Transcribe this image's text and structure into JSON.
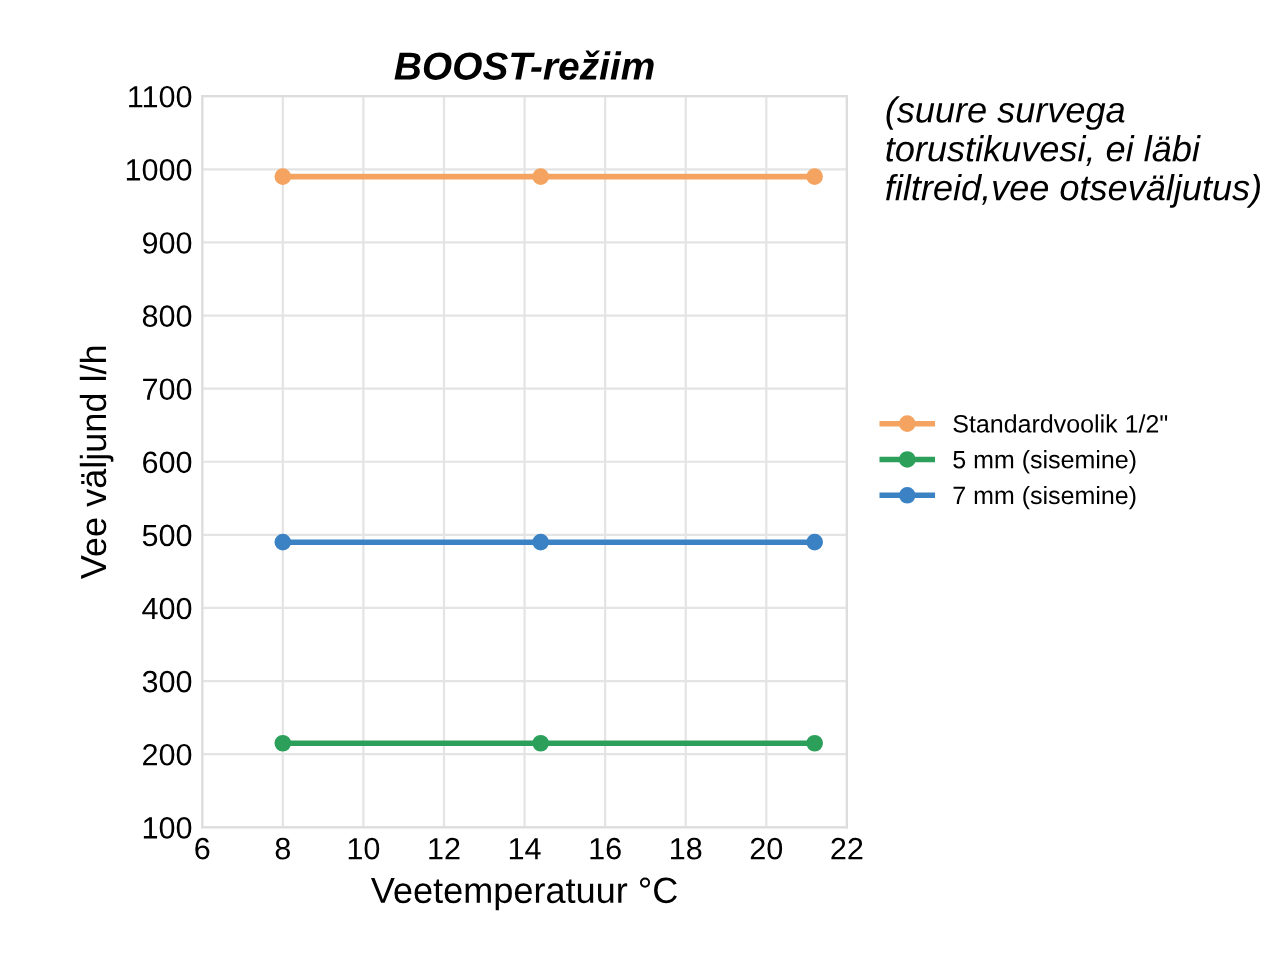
{
  "chart_data": {
    "type": "line",
    "title": "BOOST-režiim",
    "annotations": [
      "(suure survega torustikuvesi, ei läbi filtreid,vee otseväljutus)"
    ],
    "xlabel": "Veetemperatuur °C",
    "ylabel": "Vee väljund l/h",
    "x": [
      8,
      14.4,
      21.2
    ],
    "series": [
      {
        "name": "Standardvoolik 1/2\"",
        "color": "#f4a460",
        "values": [
          990,
          990,
          990
        ]
      },
      {
        "name": "5 mm (sisemine)",
        "color": "#2ca05a",
        "values": [
          215,
          215,
          215
        ]
      },
      {
        "name": "7 mm (sisemine)",
        "color": "#3b82c4",
        "values": [
          490,
          490,
          490
        ]
      }
    ],
    "xlim": [
      6,
      22
    ],
    "xticks": [
      6,
      8,
      10,
      12,
      14,
      16,
      18,
      20,
      22
    ],
    "ylim": [
      100,
      1100
    ],
    "yticks": [
      100,
      200,
      300,
      400,
      500,
      600,
      700,
      800,
      900,
      1000,
      1100
    ],
    "grid": true,
    "legend": "right",
    "marker": "circle",
    "line_style": "solid"
  }
}
